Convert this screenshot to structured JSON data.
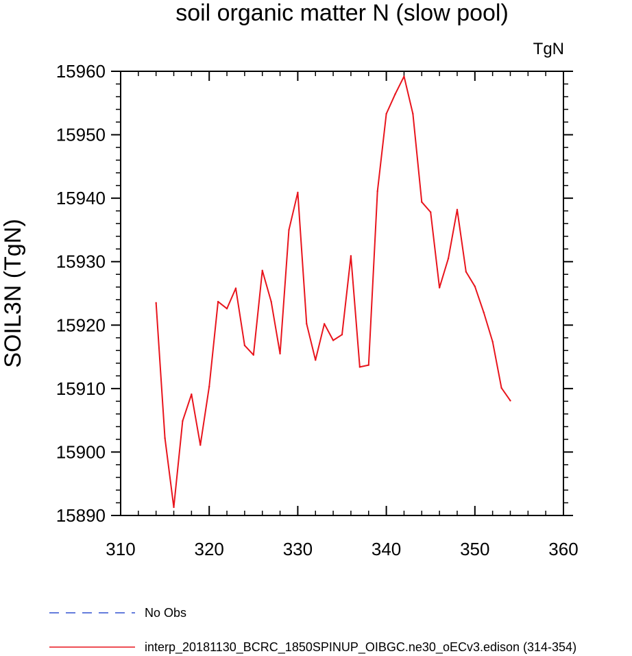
{
  "chart_data": {
    "type": "line",
    "title": "soil organic matter N (slow pool)",
    "units_label": "TgN",
    "ylabel": "SOIL3N  (TgN)",
    "xlabel": "",
    "xlim": [
      310,
      360
    ],
    "ylim": [
      15890,
      15960
    ],
    "x_ticks": [
      310,
      320,
      330,
      340,
      350,
      360
    ],
    "y_ticks": [
      15890,
      15900,
      15910,
      15920,
      15930,
      15940,
      15950,
      15960
    ],
    "series": [
      {
        "name": "No Obs",
        "color": "#3050d0",
        "dash": true,
        "x": [],
        "values": []
      },
      {
        "name": "interp_20181130_BCRC_1850SPINUP_OIBGC.ne30_oECv3.edison (314-354)",
        "color": "#e8141c",
        "dash": false,
        "x": [
          314,
          315,
          316,
          317,
          318,
          319,
          320,
          321,
          322,
          323,
          324,
          325,
          326,
          327,
          328,
          329,
          330,
          331,
          332,
          333,
          334,
          335,
          336,
          337,
          338,
          339,
          340,
          341,
          342,
          343,
          344,
          345,
          346,
          347,
          348,
          349,
          350,
          351,
          352,
          353,
          354
        ],
        "values": [
          15923.5,
          15902.2,
          15891.3,
          15904.9,
          15909.1,
          15901.1,
          15910.3,
          15923.7,
          15922.6,
          15925.8,
          15916.8,
          15915.3,
          15928.6,
          15923.7,
          15915.5,
          15935.0,
          15940.9,
          15920.2,
          15914.5,
          15920.2,
          15917.6,
          15918.5,
          15930.9,
          15913.4,
          15913.7,
          15941.1,
          15953.3,
          15956.4,
          15959.2,
          15953.3,
          15939.4,
          15937.8,
          15925.9,
          15930.5,
          15938.2,
          15928.4,
          15926.1,
          15922.0,
          15917.4,
          15910.1,
          15908.1
        ]
      }
    ],
    "legend_position": "bottom-left"
  }
}
